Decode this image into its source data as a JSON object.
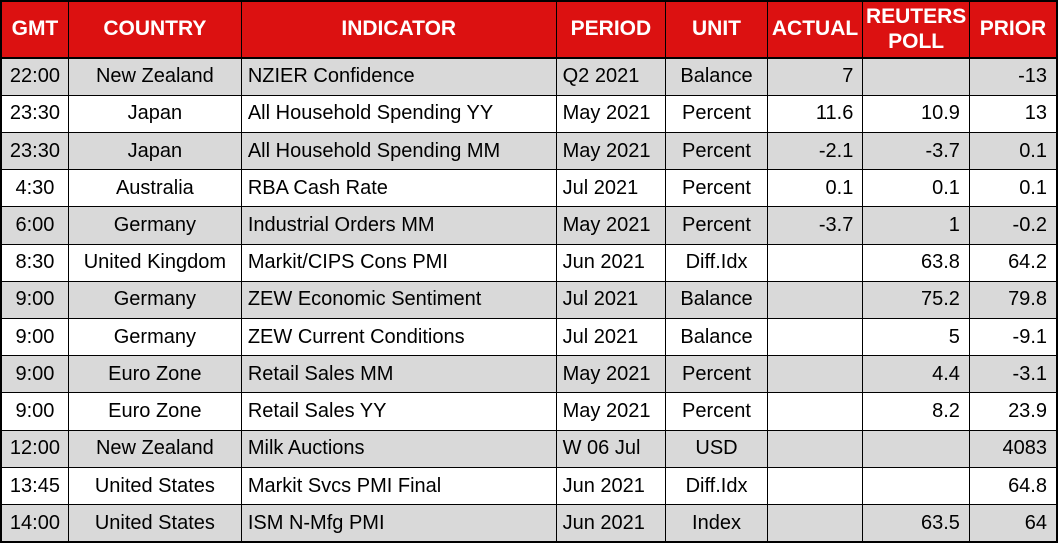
{
  "colors": {
    "header_bg": "#DC1111",
    "header_text": "#FFFFFF",
    "row_alt_bg": "#D9D9D9",
    "row_bg": "#FFFFFF",
    "border": "#000000",
    "cell_text": "#000000"
  },
  "chart_data": {
    "type": "table",
    "columns": [
      {
        "key": "gmt",
        "label": "GMT"
      },
      {
        "key": "country",
        "label": "COUNTRY"
      },
      {
        "key": "indicator",
        "label": "INDICATOR"
      },
      {
        "key": "period",
        "label": "PERIOD"
      },
      {
        "key": "unit",
        "label": "UNIT"
      },
      {
        "key": "actual",
        "label": "ACTUAL"
      },
      {
        "key": "reuters_poll",
        "label": "REUTERS POLL"
      },
      {
        "key": "prior",
        "label": "PRIOR"
      }
    ],
    "rows": [
      [
        "22:00",
        "New Zealand",
        "NZIER Confidence",
        "Q2 2021",
        "Balance",
        "7",
        "",
        "-13"
      ],
      [
        "23:30",
        "Japan",
        "All Household Spending YY",
        "May 2021",
        "Percent",
        "11.6",
        "10.9",
        "13"
      ],
      [
        "23:30",
        "Japan",
        "All Household Spending MM",
        "May 2021",
        "Percent",
        "-2.1",
        "-3.7",
        "0.1"
      ],
      [
        "4:30",
        "Australia",
        "RBA Cash Rate",
        "Jul 2021",
        "Percent",
        "0.1",
        "0.1",
        "0.1"
      ],
      [
        "6:00",
        "Germany",
        "Industrial Orders MM",
        "May 2021",
        "Percent",
        "-3.7",
        "1",
        "-0.2"
      ],
      [
        "8:30",
        "United Kingdom",
        "Markit/CIPS Cons PMI",
        "Jun 2021",
        "Diff.Idx",
        "",
        "63.8",
        "64.2"
      ],
      [
        "9:00",
        "Germany",
        "ZEW Economic Sentiment",
        "Jul 2021",
        "Balance",
        "",
        "75.2",
        "79.8"
      ],
      [
        "9:00",
        "Germany",
        "ZEW Current Conditions",
        "Jul 2021",
        "Balance",
        "",
        "5",
        "-9.1"
      ],
      [
        "9:00",
        "Euro Zone",
        "Retail Sales MM",
        "May 2021",
        "Percent",
        "",
        "4.4",
        "-3.1"
      ],
      [
        "9:00",
        "Euro Zone",
        "Retail Sales YY",
        "May 2021",
        "Percent",
        "",
        "8.2",
        "23.9"
      ],
      [
        "12:00",
        "New Zealand",
        "Milk Auctions",
        "W 06 Jul",
        "USD",
        "",
        "",
        "4083"
      ],
      [
        "13:45",
        "United States",
        "Markit Svcs PMI Final",
        "Jun 2021",
        "Diff.Idx",
        "",
        "",
        "64.8"
      ],
      [
        "14:00",
        "United States",
        "ISM N-Mfg PMI",
        "Jun 2021",
        "Index",
        "",
        "63.5",
        "64"
      ]
    ]
  }
}
